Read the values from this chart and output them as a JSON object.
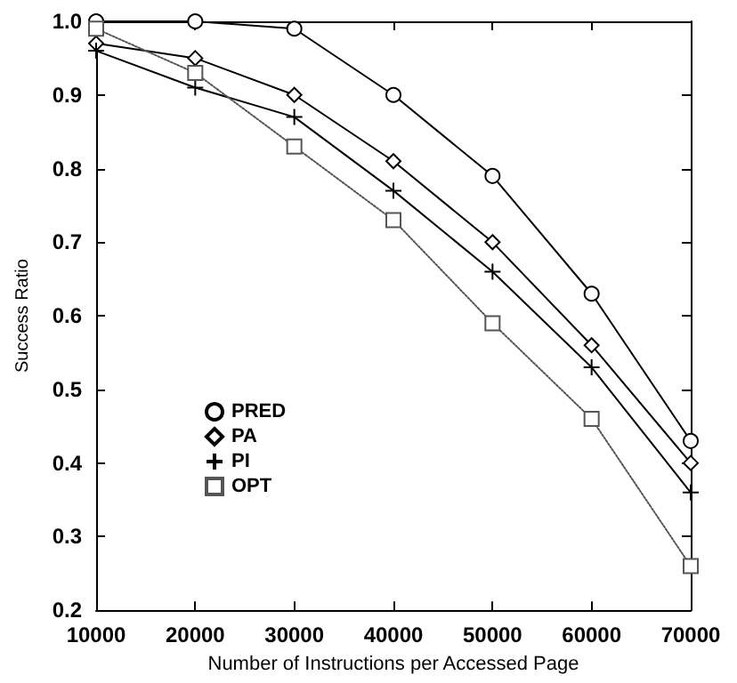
{
  "chart_data": {
    "type": "line",
    "xlabel": "Number of Instructions per Accessed Page",
    "ylabel": "Success Ratio",
    "x": [
      10000,
      20000,
      30000,
      40000,
      50000,
      60000,
      70000
    ],
    "series": [
      {
        "name": "PRED",
        "color": "#000000",
        "marker": "circle",
        "line_style": "solid",
        "values": [
          1.0,
          1.0,
          0.99,
          0.9,
          0.79,
          0.63,
          0.43
        ]
      },
      {
        "name": "PA",
        "color": "#000000",
        "marker": "diamond",
        "line_style": "solid",
        "values": [
          0.97,
          0.95,
          0.9,
          0.81,
          0.7,
          0.56,
          0.4
        ]
      },
      {
        "name": "PI",
        "color": "#000000",
        "marker": "cross",
        "line_style": "solid",
        "values": [
          0.96,
          0.91,
          0.87,
          0.77,
          0.66,
          0.53,
          0.36
        ]
      },
      {
        "name": "OPT",
        "color": "#555555",
        "marker": "square",
        "line_style": "dotted",
        "values": [
          0.99,
          0.93,
          0.83,
          0.73,
          0.59,
          0.46,
          0.26
        ]
      }
    ],
    "xlim": [
      10000,
      70000
    ],
    "xticks": [
      10000,
      20000,
      30000,
      40000,
      50000,
      60000,
      70000
    ],
    "ylim": [
      0.2,
      1.0
    ],
    "yticks": [
      0.2,
      0.3,
      0.4,
      0.5,
      0.6,
      0.7,
      0.8,
      0.9,
      {
        "value": 1.0,
        "label": "1.0"
      }
    ],
    "grid": false,
    "legend": "bottom left"
  }
}
